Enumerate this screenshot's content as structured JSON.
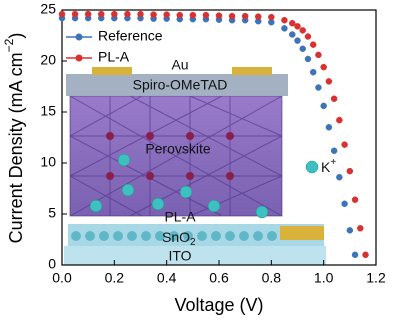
{
  "chart_data": {
    "type": "line",
    "xlabel": "Voltage (V)",
    "ylabel": "Current Density (mA cm",
    "ylabel_sup": "−2",
    "ylabel_end": ")",
    "x": [
      0,
      0.05,
      0.1,
      0.15,
      0.2,
      0.25,
      0.3,
      0.35,
      0.4,
      0.45,
      0.5,
      0.55,
      0.6,
      0.65,
      0.7,
      0.75,
      0.8,
      0.85,
      0.88,
      0.9,
      0.92,
      0.94,
      0.96,
      0.98,
      1.0,
      1.02,
      1.04,
      1.06,
      1.08,
      1.1,
      1.12,
      1.14,
      1.16
    ],
    "series": [
      {
        "name": "Reference",
        "color": "#3d73b8",
        "values": [
          24.2,
          24.2,
          24.2,
          24.2,
          24.2,
          24.2,
          24.2,
          24.15,
          24.15,
          24.1,
          24.1,
          24.1,
          24.05,
          24.0,
          24.0,
          23.9,
          23.8,
          23.2,
          22.6,
          22.0,
          21.2,
          20.2,
          18.9,
          17.4,
          15.6,
          13.5,
          11.2,
          8.6,
          6.0,
          3.4,
          1.0,
          null,
          null
        ]
      },
      {
        "name": "PL-A",
        "color": "#d93030",
        "values": [
          24.6,
          24.6,
          24.6,
          24.6,
          24.6,
          24.6,
          24.6,
          24.55,
          24.55,
          24.5,
          24.5,
          24.5,
          24.45,
          24.4,
          24.4,
          24.35,
          24.3,
          24.0,
          23.7,
          23.4,
          23.0,
          22.4,
          21.6,
          20.6,
          19.4,
          18.0,
          16.3,
          14.2,
          11.8,
          9.2,
          6.4,
          3.6,
          1.0
        ]
      }
    ],
    "xlim": [
      0,
      1.2
    ],
    "ylim": [
      0,
      25
    ],
    "xticks": [
      {
        "value": 0,
        "label": "0.0"
      },
      0.2,
      0.4,
      0.6,
      0.8,
      {
        "value": 1,
        "label": "1.0"
      },
      1.2
    ],
    "yticks": [
      0,
      5,
      10,
      15,
      20,
      25
    ],
    "annotations": {
      "top_contact": "Au",
      "htl": "Spiro-OMeTAD",
      "absorber": "Perovskite",
      "passivation": "PL-A",
      "etl": "SnO",
      "etl_sub": "2",
      "substrate": "ITO",
      "ion": "K",
      "ion_sup": "+"
    }
  }
}
